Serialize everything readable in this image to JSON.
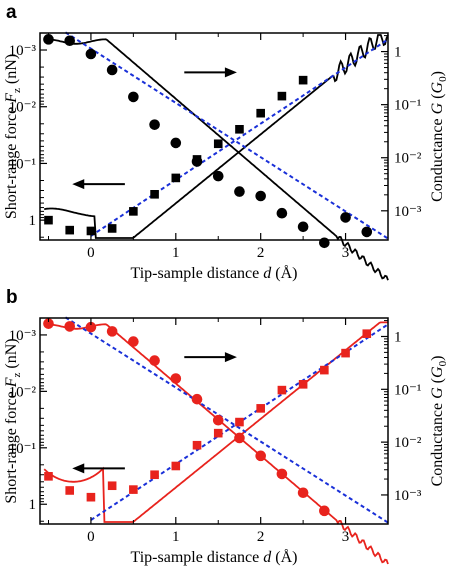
{
  "chart_data": [
    {
      "panel": "a",
      "type": "line",
      "xlabel": "Tip-sample distance d (Å)",
      "ylabel_left": "Short-range force F_z (nN)",
      "ylabel_right": "Conductance G (G_0)",
      "xlim": [
        -0.6,
        3.5
      ],
      "x_ticks": [
        "0",
        "1",
        "2",
        "3"
      ],
      "left_axis": {
        "scale": "log",
        "inverted": true,
        "ticks": [
          "10⁻³",
          "10⁻²",
          "10⁻¹",
          "1"
        ]
      },
      "right_axis": {
        "scale": "log",
        "ticks": [
          "1",
          "10⁻¹",
          "10⁻²",
          "10⁻³"
        ]
      },
      "colors": {
        "markers": "#000000",
        "curve": "#000000",
        "fit": "#1a30d8"
      },
      "force_points": {
        "x": [
          -0.5,
          -0.25,
          0,
          0.25,
          0.5,
          0.75,
          1.0,
          1.25,
          1.5,
          1.75,
          2.0,
          2.25,
          2.5
        ],
        "y": [
          1.0,
          1.5,
          1.55,
          1.4,
          0.7,
          0.35,
          0.18,
          0.085,
          0.045,
          0.025,
          0.013,
          0.0065,
          0.0034
        ]
      },
      "conductance_points": {
        "x": [
          -0.5,
          -0.25,
          0,
          0.25,
          0.5,
          0.75,
          1.0,
          1.25,
          1.5,
          1.75,
          2.0,
          2.25,
          2.5,
          2.75,
          3.0,
          3.25
        ],
        "y": [
          1.7,
          1.6,
          0.9,
          0.45,
          0.14,
          0.042,
          0.019,
          0.0085,
          0.0045,
          0.0023,
          0.0019,
          0.0009,
          0.0005,
          0.00025,
          0.00075,
          0.0004
        ]
      },
      "arrows": [
        {
          "direction": "right",
          "refers_to": "conductance (right axis)"
        },
        {
          "direction": "left",
          "refers_to": "force (left axis)"
        }
      ]
    },
    {
      "panel": "b",
      "type": "line",
      "xlabel": "Tip-sample distance d (Å)",
      "ylabel_left": "Short-range force F_z (nN)",
      "ylabel_right": "Conductance G (G_0)",
      "xlim": [
        -0.6,
        3.5
      ],
      "x_ticks": [
        "0",
        "1",
        "2",
        "3"
      ],
      "left_axis": {
        "scale": "log",
        "inverted": true,
        "ticks": [
          "10⁻³",
          "10⁻²",
          "10⁻¹",
          "1"
        ]
      },
      "right_axis": {
        "scale": "log",
        "ticks": [
          "1",
          "10⁻¹",
          "10⁻²",
          "10⁻³"
        ]
      },
      "colors": {
        "markers": "#e8231d",
        "curve": "#e8231d",
        "fit": "#1a30d8"
      },
      "force_points": {
        "x": [
          -0.5,
          -0.25,
          0,
          0.25,
          0.5,
          0.75,
          1.0,
          1.25,
          1.5,
          1.75,
          2.0,
          2.25,
          2.5,
          2.75,
          3.0,
          3.25
        ],
        "y": [
          0.32,
          0.57,
          0.75,
          0.47,
          0.55,
          0.3,
          0.21,
          0.09,
          0.055,
          0.035,
          0.02,
          0.0095,
          0.0075,
          0.0042,
          0.0021,
          0.00095
        ]
      },
      "conductance_points": {
        "x": [
          -0.5,
          -0.25,
          0,
          0.25,
          0.5,
          0.75,
          1.0,
          1.25,
          1.5,
          1.75,
          2.0,
          2.25,
          2.5,
          2.75
        ],
        "y": [
          1.75,
          1.55,
          1.5,
          1.25,
          0.8,
          0.35,
          0.16,
          0.065,
          0.026,
          0.012,
          0.0055,
          0.0025,
          0.0011,
          0.0005
        ]
      },
      "arrows": [
        {
          "direction": "right",
          "refers_to": "conductance (right axis)"
        },
        {
          "direction": "left",
          "refers_to": "force (left axis)"
        }
      ]
    }
  ]
}
